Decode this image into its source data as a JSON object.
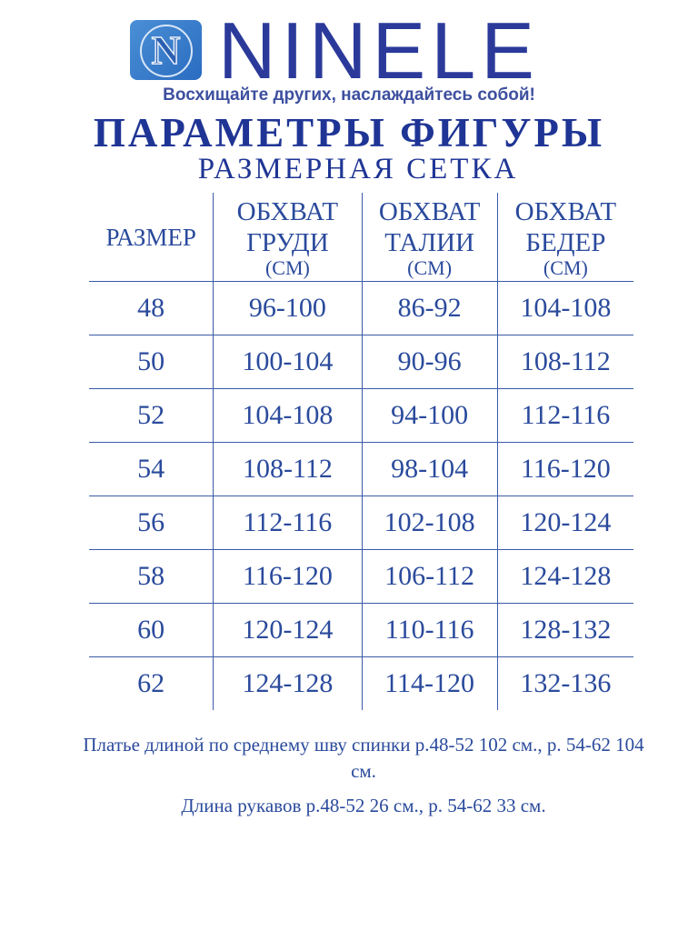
{
  "brand": {
    "name": "NINELE",
    "logo_letter": "N",
    "tagline": "Восхищайте других, наслаждайтесь собой!",
    "color": "#2b3a9a"
  },
  "title": "ПАРАМЕТРЫ ФИГУРЫ",
  "subtitle": "РАЗМЕРНАЯ СЕТКА",
  "table": {
    "headers": [
      {
        "line1": "РАЗМЕР"
      },
      {
        "line1": "ОБХВАТ",
        "line2": "ГРУДИ",
        "unit": "(СМ)"
      },
      {
        "line1": "ОБХВАТ",
        "line2": "ТАЛИИ",
        "unit": "(СМ)"
      },
      {
        "line1": "ОБХВАТ",
        "line2": "БЕДЕР",
        "unit": "(СМ)"
      }
    ],
    "rows": [
      [
        "48",
        "96-100",
        "86-92",
        "104-108"
      ],
      [
        "50",
        "100-104",
        "90-96",
        "108-112"
      ],
      [
        "52",
        "104-108",
        "94-100",
        "112-116"
      ],
      [
        "54",
        "108-112",
        "98-104",
        "116-120"
      ],
      [
        "56",
        "112-116",
        "102-108",
        "120-124"
      ],
      [
        "58",
        "116-120",
        "106-112",
        "124-128"
      ],
      [
        "60",
        "120-124",
        "110-116",
        "128-132"
      ],
      [
        "62",
        "124-128",
        "114-120",
        "132-136"
      ]
    ]
  },
  "notes": [
    "Платье длиной по среднему шву спинки р.48-52 102 см., р. 54-62 104 см.",
    "Длина рукавов р.48-52 26 см., р. 54-62 33 см."
  ]
}
